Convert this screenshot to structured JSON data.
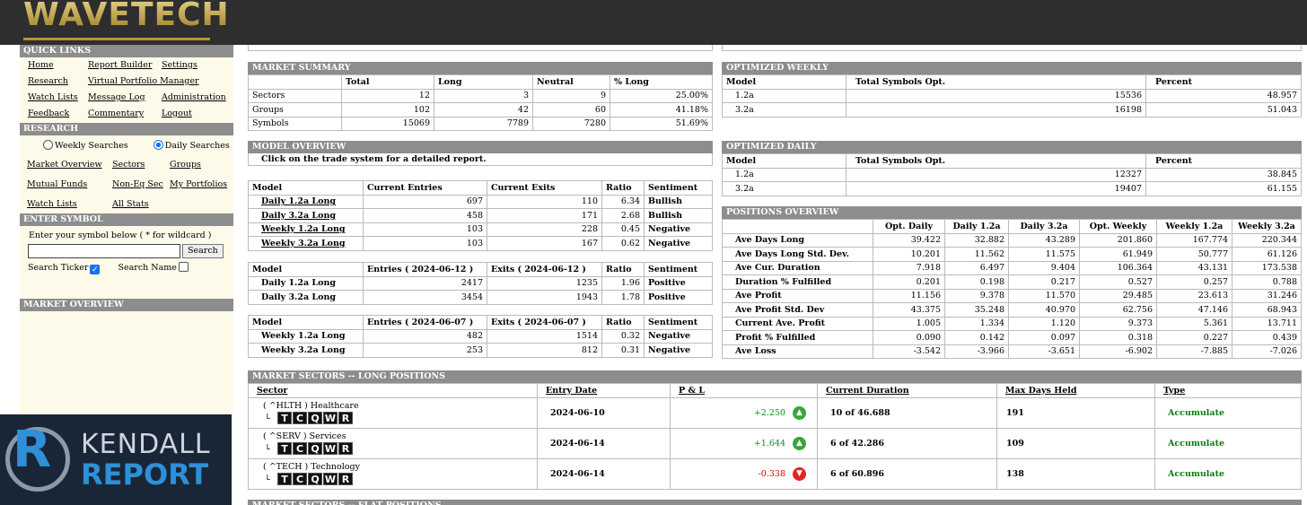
{
  "brand": {
    "logo": "WAVETECH"
  },
  "sidebar": {
    "quick_links_title": "QUICK LINKS",
    "quick_links": [
      "Home",
      "Report Builder",
      "Settings",
      "Research",
      "Virtual Portfolio Manager",
      "",
      "Watch Lists",
      "Message Log",
      "Administration",
      "Feedback",
      "Commentary",
      "Logout"
    ],
    "research_title": "RESEARCH",
    "radio_weekly": "Weekly Searches",
    "radio_daily": "Daily Searches",
    "research_links": [
      "Market Overview",
      "Sectors",
      "Groups",
      "Mutual Funds",
      "Non-Eq Sec",
      "My Portfolios",
      "Watch Lists",
      "All Stats"
    ],
    "enter_symbol_title": "ENTER SYMBOL",
    "symbol_prompt": "Enter your symbol below ( * for wildcard )",
    "search_button": "Search",
    "search_ticker": "Search Ticker",
    "search_name": "Search Name",
    "market_overview_title": "MARKET OVERVIEW",
    "check_icon": "✓"
  },
  "kendall": {
    "r": "R",
    "line1": "KENDALL",
    "line2": "REPORT"
  },
  "market_summary": {
    "title": "MARKET SUMMARY",
    "headers": [
      "",
      "Total",
      "Long",
      "Neutral",
      "% Long"
    ],
    "rows": [
      [
        "Sectors",
        "12",
        "3",
        "9",
        "25.00%"
      ],
      [
        "Groups",
        "102",
        "42",
        "60",
        "41.18%"
      ],
      [
        "Symbols",
        "15069",
        "7789",
        "7280",
        "51.69%"
      ]
    ]
  },
  "model_overview": {
    "title": "MODEL OVERVIEW",
    "note": "Click on the trade system for a detailed report.",
    "t1_headers": [
      "Model",
      "Current Entries",
      "Current Exits",
      "Ratio",
      "Sentiment"
    ],
    "t1_rows": [
      [
        "Daily 1.2a Long",
        "697",
        "110",
        "6.34",
        "Bullish"
      ],
      [
        "Daily 3.2a Long",
        "458",
        "171",
        "2.68",
        "Bullish"
      ],
      [
        "Weekly 1.2a Long",
        "103",
        "228",
        "0.45",
        "Negative"
      ],
      [
        "Weekly 3.2a Long",
        "103",
        "167",
        "0.62",
        "Negative"
      ]
    ],
    "t2_headers": [
      "Model",
      "Entries ( 2024-06-12 )",
      "Exits ( 2024-06-12 )",
      "Ratio",
      "Sentiment"
    ],
    "t2_rows": [
      [
        "Daily 1.2a Long",
        "2417",
        "1235",
        "1.96",
        "Positive"
      ],
      [
        "Daily 3.2a Long",
        "3454",
        "1943",
        "1.78",
        "Positive"
      ]
    ],
    "t3_headers": [
      "Model",
      "Entries ( 2024-06-07 )",
      "Exits ( 2024-06-07 )",
      "Ratio",
      "Sentiment"
    ],
    "t3_rows": [
      [
        "Weekly 1.2a Long",
        "482",
        "1514",
        "0.32",
        "Negative"
      ],
      [
        "Weekly 3.2a Long",
        "253",
        "812",
        "0.31",
        "Negative"
      ]
    ]
  },
  "optimized_weekly": {
    "title": "OPTIMIZED WEEKLY",
    "headers": [
      "Model",
      "Total Symbols Opt.",
      "Percent"
    ],
    "rows": [
      [
        "1.2a",
        "15536",
        "48.957"
      ],
      [
        "3.2a",
        "16198",
        "51.043"
      ]
    ]
  },
  "optimized_daily": {
    "title": "OPTIMIZED DAILY",
    "headers": [
      "Model",
      "Total Symbols Opt.",
      "Percent"
    ],
    "rows": [
      [
        "1.2a",
        "12327",
        "38.845"
      ],
      [
        "3.2a",
        "19407",
        "61.155"
      ]
    ]
  },
  "positions_overview": {
    "title": "POSITIONS OVERVIEW",
    "headers": [
      "",
      "Opt. Daily",
      "Daily 1.2a",
      "Daily 3.2a",
      "Opt. Weekly",
      "Weekly 1.2a",
      "Weekly 3.2a"
    ],
    "rows": [
      [
        "Ave Days Long",
        "39.422",
        "32.882",
        "43.289",
        "201.860",
        "167.774",
        "220.344"
      ],
      [
        "Ave Days Long Std. Dev.",
        "10.201",
        "11.562",
        "11.575",
        "61.949",
        "50.777",
        "61.126"
      ],
      [
        "Ave Cur. Duration",
        "7.918",
        "6.497",
        "9.404",
        "106.364",
        "43.131",
        "173.538"
      ],
      [
        "Duration % Fulfilled",
        "0.201",
        "0.198",
        "0.217",
        "0.527",
        "0.257",
        "0.788"
      ],
      [
        "Ave Profit",
        "11.156",
        "9.378",
        "11.570",
        "29.485",
        "23.613",
        "31.246"
      ],
      [
        "Ave Profit Std. Dev",
        "43.375",
        "35.248",
        "40.970",
        "62.756",
        "47.146",
        "68.943"
      ],
      [
        "Current Ave. Profit",
        "1.005",
        "1.334",
        "1.120",
        "9.373",
        "5.361",
        "13.711"
      ],
      [
        "Profit % Fulfilled",
        "0.090",
        "0.142",
        "0.097",
        "0.318",
        "0.227",
        "0.439"
      ],
      [
        "Ave Loss",
        "-3.542",
        "-3.966",
        "-3.651",
        "-6.902",
        "-7.885",
        "-7.026"
      ]
    ]
  },
  "market_sectors": {
    "title": "MARKET SECTORS -- LONG POSITIONS",
    "headers": [
      "Sector",
      "Entry Date",
      "P & L",
      "Current Duration",
      "Max Days Held",
      "Type"
    ],
    "tree_glyph": "└",
    "tcqwr": [
      "T",
      "C",
      "Q",
      "W",
      "R"
    ],
    "up_icon": "▲",
    "down_icon": "▼",
    "rows": [
      {
        "sector": "( ^HLTH ) Healthcare",
        "entry": "2024-06-10",
        "pl": "+2.250",
        "dir": "up",
        "duration": "10 of 46.688",
        "max": "191",
        "type": "Accumulate"
      },
      {
        "sector": "( ^SERV ) Services",
        "entry": "2024-06-14",
        "pl": "+1.644",
        "dir": "up",
        "duration": "6 of 42.286",
        "max": "109",
        "type": "Accumulate"
      },
      {
        "sector": "( ^TECH ) Technology",
        "entry": "2024-06-14",
        "pl": "-0.338",
        "dir": "down",
        "duration": "6 of 60.896",
        "max": "138",
        "type": "Accumulate"
      }
    ],
    "next_title": "MARKET SECTORS -- FLAT POSITIONS"
  }
}
